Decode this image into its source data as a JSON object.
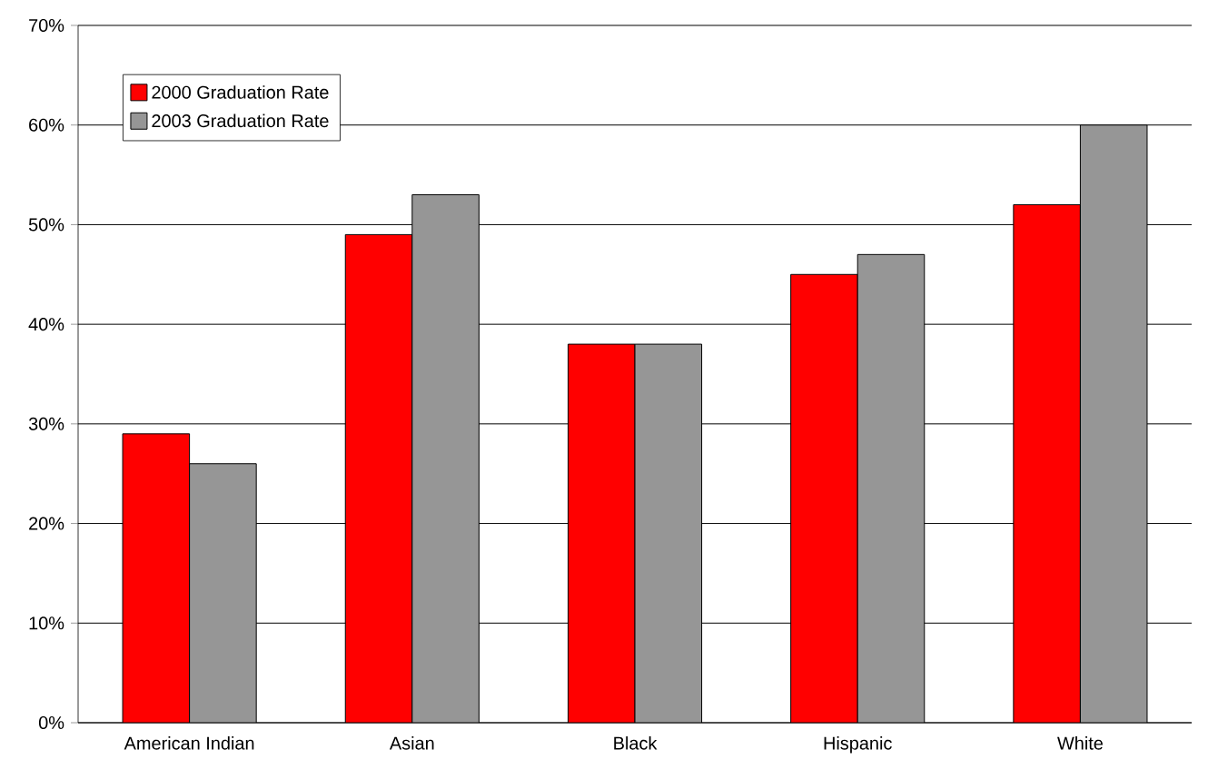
{
  "chart_data": {
    "type": "bar",
    "categories": [
      "American Indian",
      "Asian",
      "Black",
      "Hispanic",
      "White"
    ],
    "series": [
      {
        "name": "2000 Graduation Rate",
        "color": "#ff0000",
        "values": [
          29,
          49,
          38,
          45,
          52
        ]
      },
      {
        "name": "2003 Graduation Rate",
        "color": "#969696",
        "values": [
          26,
          53,
          38,
          47,
          60
        ]
      }
    ],
    "ylim": [
      0,
      70
    ],
    "yticks": [
      {
        "value": 0,
        "label": "0%"
      },
      {
        "value": 10,
        "label": "10%"
      },
      {
        "value": 20,
        "label": "20%"
      },
      {
        "value": 30,
        "label": "30%"
      },
      {
        "value": 40,
        "label": "40%"
      },
      {
        "value": 50,
        "label": "50%"
      },
      {
        "value": 60,
        "label": "60%"
      },
      {
        "value": 70,
        "label": "70%"
      }
    ],
    "grid": "y",
    "legend": "top left"
  }
}
